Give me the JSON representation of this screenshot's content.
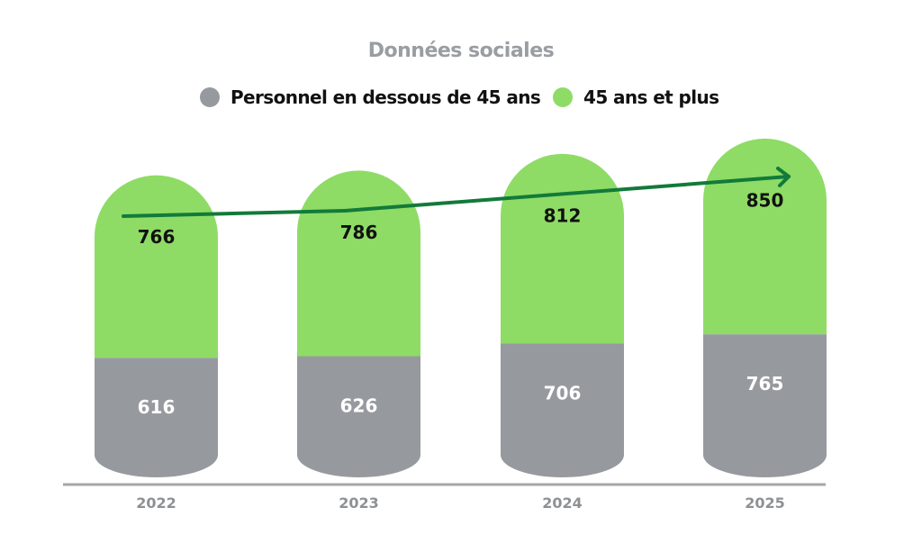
{
  "chart_data": {
    "type": "bar",
    "stacked": true,
    "title": "Données sociales",
    "categories": [
      "2022",
      "2023",
      "2024",
      "2025"
    ],
    "series": [
      {
        "name": "Personnel en dessous de 45 ans",
        "color": "#969a9e",
        "label_color": "#ffffff",
        "values": [
          616,
          626,
          706,
          765
        ]
      },
      {
        "name": "45 ans et plus",
        "color": "#8edc65",
        "label_color": "#111111",
        "values": [
          766,
          786,
          812,
          850
        ]
      }
    ],
    "trend_arrow": {
      "color": "#127a3a",
      "direction": "up"
    },
    "legend_position": "top",
    "grid": false,
    "xlabel": "",
    "ylabel": ""
  }
}
